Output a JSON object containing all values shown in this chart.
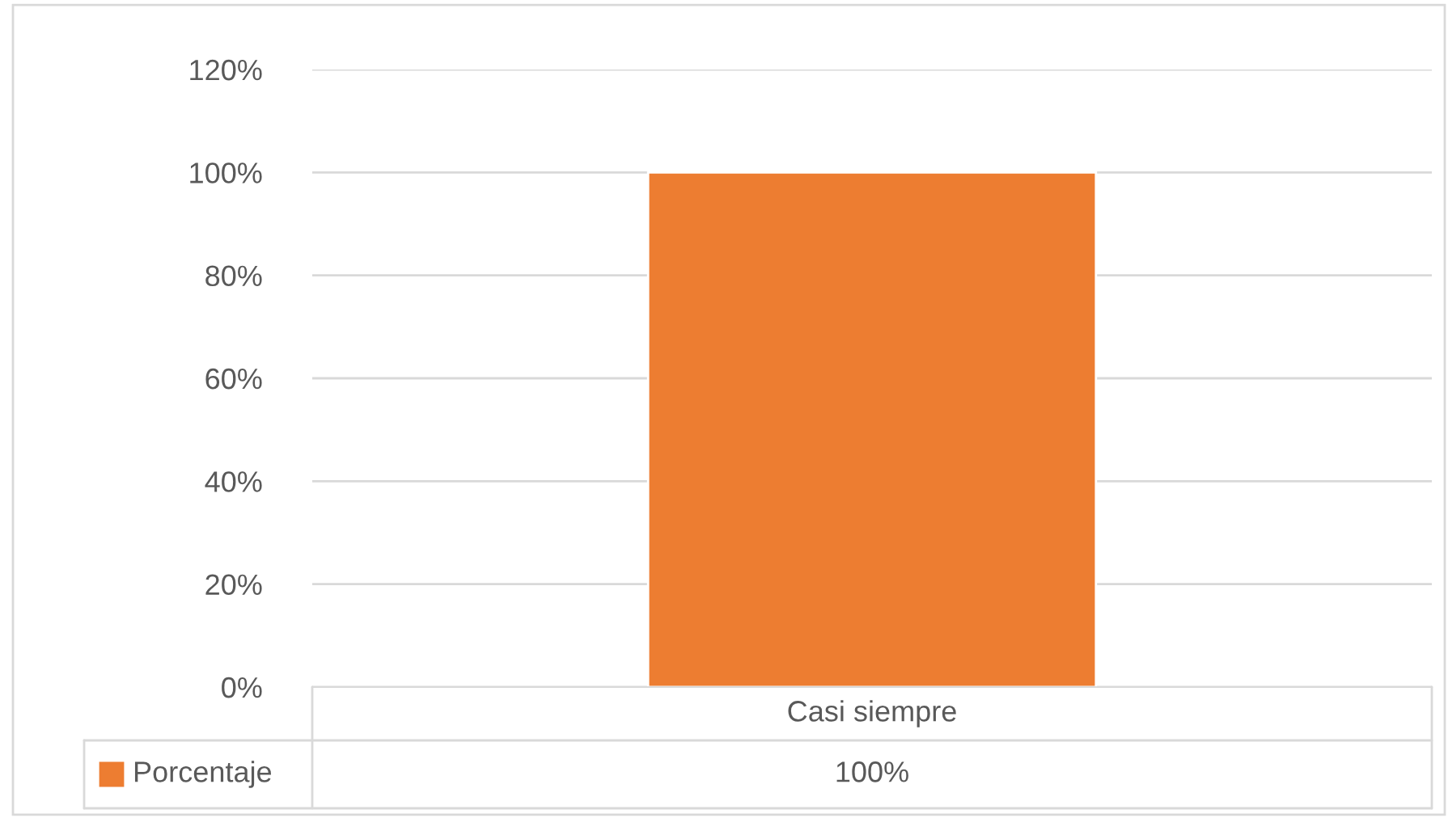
{
  "chart_data": {
    "type": "bar",
    "categories": [
      "Casi siempre"
    ],
    "series": [
      {
        "name": "Porcentaje",
        "color": "#ed7d31",
        "values": [
          100
        ],
        "value_labels": [
          "100%"
        ]
      }
    ],
    "ylim": [
      0,
      120
    ],
    "yticks": [
      {
        "value": 0,
        "label": "0%"
      },
      {
        "value": 20,
        "label": "20%"
      },
      {
        "value": 40,
        "label": "40%"
      },
      {
        "value": 60,
        "label": "60%"
      },
      {
        "value": 80,
        "label": "80%"
      },
      {
        "value": 100,
        "label": "100%"
      },
      {
        "value": 120,
        "label": "120%"
      }
    ],
    "grid": "y"
  }
}
